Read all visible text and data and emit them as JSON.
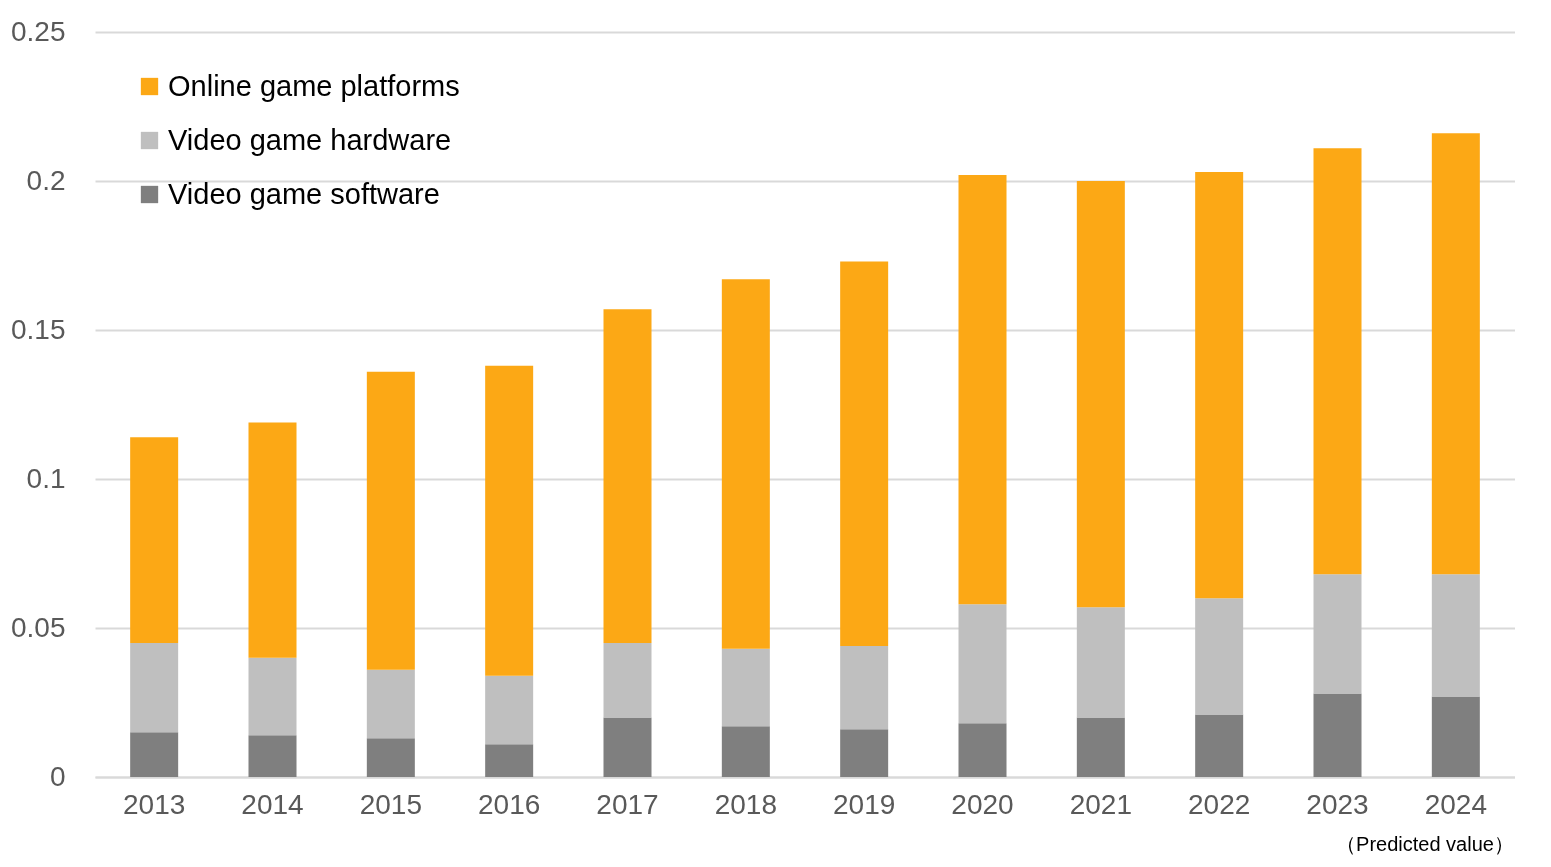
{
  "chart_data": {
    "type": "bar",
    "stacked": true,
    "categories": [
      "2013",
      "2014",
      "2015",
      "2016",
      "2017",
      "2018",
      "2019",
      "2020",
      "2021",
      "2022",
      "2023",
      "2024"
    ],
    "series": [
      {
        "name": "Video game software",
        "color": "#7f7f7f",
        "values": [
          0.015,
          0.014,
          0.013,
          0.011,
          0.02,
          0.017,
          0.016,
          0.018,
          0.02,
          0.021,
          0.028,
          0.027
        ]
      },
      {
        "name": "Video game hardware",
        "color": "#bfbfbf",
        "values": [
          0.03,
          0.026,
          0.023,
          0.023,
          0.025,
          0.026,
          0.028,
          0.04,
          0.037,
          0.039,
          0.04,
          0.041
        ]
      },
      {
        "name": "Online game platforms",
        "color": "#fca815",
        "values": [
          0.069,
          0.079,
          0.1,
          0.104,
          0.112,
          0.124,
          0.129,
          0.144,
          0.143,
          0.143,
          0.143,
          0.148
        ]
      }
    ],
    "ylim": [
      0,
      0.25
    ],
    "yticks": [
      0,
      0.05,
      0.1,
      0.15,
      0.2,
      0.25
    ],
    "grid": "y",
    "legend": "top left",
    "annotations": [
      "（Predicted value）"
    ]
  }
}
